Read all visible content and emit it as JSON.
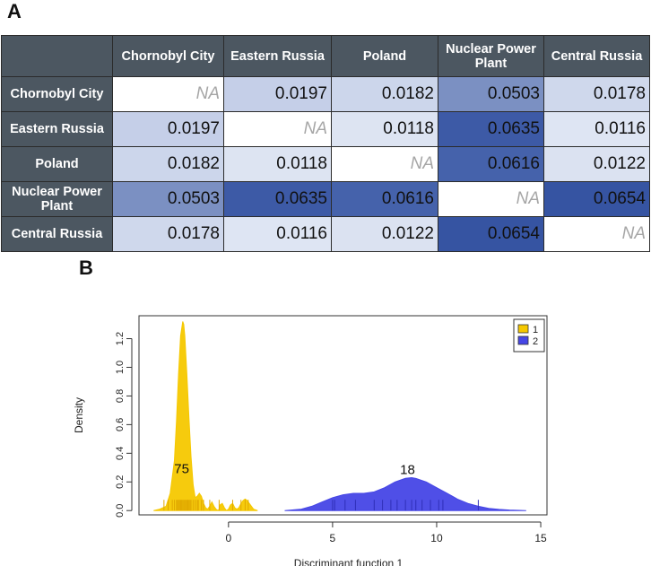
{
  "panels": {
    "a": "A",
    "b": "B"
  },
  "table": {
    "columns": [
      "Chornobyl City",
      "Eastern Russia",
      "Poland",
      "Nuclear Power Plant",
      "Central Russia"
    ],
    "rows": [
      {
        "label": "Chornobyl City",
        "cells": [
          {
            "text": "NA",
            "na": true
          },
          {
            "text": "0.0197",
            "color": "#c5cfe8"
          },
          {
            "text": "0.0182",
            "color": "#ccd6eb"
          },
          {
            "text": "0.0503",
            "color": "#7b90c2"
          },
          {
            "text": "0.0178",
            "color": "#cfd8ec"
          }
        ]
      },
      {
        "label": "Eastern Russia",
        "cells": [
          {
            "text": "0.0197",
            "color": "#c5cfe8"
          },
          {
            "text": "NA",
            "na": true
          },
          {
            "text": "0.0118",
            "color": "#dde4f2"
          },
          {
            "text": "0.0635",
            "color": "#3d5aa6"
          },
          {
            "text": "0.0116",
            "color": "#dee5f3"
          }
        ]
      },
      {
        "label": "Poland",
        "cells": [
          {
            "text": "0.0182",
            "color": "#ccd6eb"
          },
          {
            "text": "0.0118",
            "color": "#dde4f2"
          },
          {
            "text": "NA",
            "na": true
          },
          {
            "text": "0.0616",
            "color": "#4562ab"
          },
          {
            "text": "0.0122",
            "color": "#dbe2f1"
          }
        ]
      },
      {
        "label": "Nuclear Power Plant",
        "cells": [
          {
            "text": "0.0503",
            "color": "#7b90c2"
          },
          {
            "text": "0.0635",
            "color": "#3d5aa6"
          },
          {
            "text": "0.0616",
            "color": "#4562ab"
          },
          {
            "text": "NA",
            "na": true
          },
          {
            "text": "0.0654",
            "color": "#3654a2"
          }
        ]
      },
      {
        "label": "Central Russia",
        "cells": [
          {
            "text": "0.0178",
            "color": "#cfd8ec"
          },
          {
            "text": "0.0116",
            "color": "#dee5f3"
          },
          {
            "text": "0.0122",
            "color": "#dbe2f1"
          },
          {
            "text": "0.0654",
            "color": "#3654a2"
          },
          {
            "text": "NA",
            "na": true
          }
        ]
      }
    ]
  },
  "chart_data": {
    "type": "area",
    "xlabel": "Discriminant function 1",
    "ylabel": "Density",
    "xlim": [
      -4.3,
      15.3
    ],
    "ylim": [
      -0.03,
      1.36
    ],
    "xticks": [
      0,
      5,
      10,
      15
    ],
    "yticks": [
      0.0,
      0.2,
      0.4,
      0.6,
      0.8,
      1.0,
      1.2
    ],
    "tick_labels_x": [
      "0",
      "5",
      "10",
      "15"
    ],
    "tick_labels_y": [
      "0.0",
      "0.2",
      "0.4",
      "0.6",
      "0.8",
      "1.0",
      "1.2"
    ],
    "legend_position": "top-right",
    "series": [
      {
        "name": "1",
        "color": "#f5c800",
        "x": [
          -3.6,
          -3.3,
          -3.0,
          -2.8,
          -2.6,
          -2.5,
          -2.4,
          -2.3,
          -2.2,
          -2.15,
          -2.1,
          -2.0,
          -1.9,
          -1.8,
          -1.7,
          -1.6,
          -1.5,
          -1.4,
          -1.3,
          -1.2,
          -1.1,
          -1.0,
          -0.9,
          -0.8,
          -0.7,
          -0.6,
          -0.5,
          -0.45,
          -0.4,
          -0.3,
          -0.2,
          -0.1,
          0.0,
          0.1,
          0.2,
          0.3,
          0.4,
          0.5,
          0.6,
          0.7,
          0.8,
          0.9,
          1.0,
          1.1,
          1.2,
          1.4
        ],
        "y": [
          0.0,
          0.01,
          0.03,
          0.12,
          0.35,
          0.62,
          0.95,
          1.22,
          1.32,
          1.3,
          1.22,
          0.95,
          0.65,
          0.38,
          0.18,
          0.09,
          0.1,
          0.12,
          0.1,
          0.05,
          0.02,
          0.01,
          0.03,
          0.06,
          0.03,
          0.01,
          0.0,
          0.01,
          0.04,
          0.05,
          0.02,
          0.0,
          0.01,
          0.04,
          0.05,
          0.02,
          0.01,
          0.02,
          0.05,
          0.07,
          0.08,
          0.07,
          0.05,
          0.03,
          0.01,
          0.0
        ],
        "rug": [
          -3.1,
          -2.9,
          -2.7,
          -2.6,
          -2.5,
          -2.45,
          -2.4,
          -2.35,
          -2.3,
          -2.25,
          -2.2,
          -2.15,
          -2.1,
          -2.05,
          -2.0,
          -1.95,
          -1.9,
          -1.85,
          -1.8,
          -1.7,
          -1.6,
          -1.5,
          -1.45,
          -1.3,
          -1.2,
          -0.9,
          -0.45,
          0.2,
          0.6,
          0.8,
          0.95
        ],
        "annotation": {
          "text": "75",
          "x": -2.25,
          "y": 0.26
        }
      },
      {
        "name": "2",
        "color": "#4646e6",
        "x": [
          2.7,
          3.5,
          4.0,
          4.5,
          5.0,
          5.5,
          6.0,
          6.5,
          7.0,
          7.5,
          8.0,
          8.5,
          8.8,
          9.0,
          9.5,
          10.0,
          10.5,
          11.0,
          11.5,
          12.0,
          12.5,
          13.0,
          13.5,
          14.0,
          14.3
        ],
        "y": [
          0.0,
          0.01,
          0.03,
          0.06,
          0.09,
          0.11,
          0.12,
          0.12,
          0.13,
          0.16,
          0.2,
          0.225,
          0.23,
          0.225,
          0.2,
          0.16,
          0.12,
          0.08,
          0.05,
          0.03,
          0.015,
          0.008,
          0.004,
          0.001,
          0.0
        ],
        "rug": [
          5.0,
          5.1,
          5.6,
          6.1,
          7.0,
          7.4,
          7.8,
          8.1,
          8.5,
          8.8,
          9.0,
          9.3,
          9.7,
          10.1,
          10.3,
          12.0
        ],
        "annotation": {
          "text": "18",
          "x": 8.6,
          "y": 0.255
        }
      }
    ]
  }
}
